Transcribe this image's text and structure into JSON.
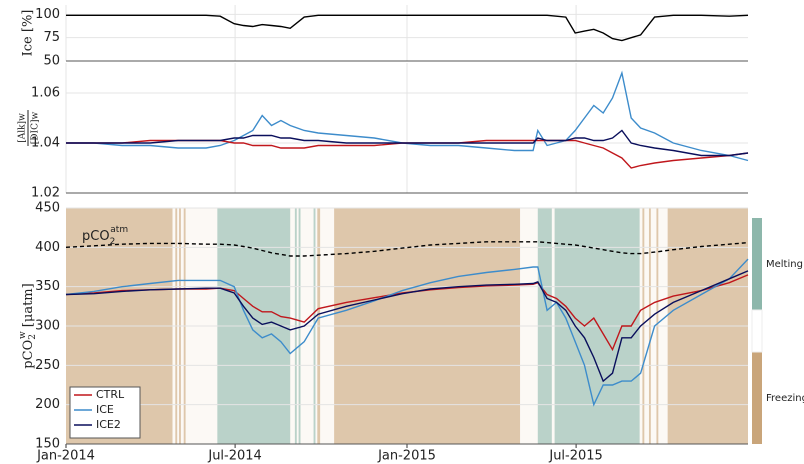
{
  "chart_data": [
    {
      "type": "line",
      "ylabel": "Ice [%]",
      "x": [
        0,
        30,
        60,
        90,
        120,
        150,
        165,
        180,
        190,
        200,
        210,
        220,
        230,
        240,
        255,
        270,
        300,
        330,
        360,
        390,
        420,
        450,
        480,
        500,
        505,
        515,
        525,
        535,
        545,
        555,
        565,
        575,
        585,
        595,
        605,
        615,
        630,
        650,
        680,
        710,
        730
      ],
      "xlim": [
        0,
        730
      ],
      "ylim": [
        50,
        110
      ],
      "yticks": [
        50,
        75,
        100
      ],
      "grid": true,
      "series": [
        {
          "color": "#000000",
          "values": [
            99,
            99,
            99,
            99,
            99,
            99,
            98,
            90,
            88,
            87,
            89,
            88,
            87,
            85,
            97,
            99,
            99,
            99,
            99,
            99,
            99,
            99,
            99,
            99,
            99,
            99,
            98,
            97,
            80,
            82,
            84,
            80,
            74,
            72,
            75,
            78,
            97,
            99,
            99,
            98,
            99
          ]
        }
      ]
    },
    {
      "type": "line",
      "ylabel": {
        "num": "[Alk]w",
        "den": "[DIC]w"
      },
      "x": [
        0,
        30,
        60,
        90,
        120,
        150,
        165,
        180,
        190,
        200,
        210,
        220,
        230,
        240,
        255,
        270,
        300,
        330,
        360,
        390,
        420,
        450,
        480,
        500,
        505,
        515,
        525,
        535,
        545,
        555,
        565,
        575,
        585,
        595,
        605,
        615,
        630,
        650,
        680,
        710,
        730
      ],
      "xlim": [
        0,
        730
      ],
      "ylim": [
        1.02,
        1.072
      ],
      "yticks": [
        1.02,
        1.04,
        1.06
      ],
      "grid": true,
      "series": [
        {
          "name": "ICE",
          "color": "#3d8ccb",
          "values": [
            1.04,
            1.04,
            1.039,
            1.039,
            1.038,
            1.038,
            1.039,
            1.041,
            1.043,
            1.045,
            1.051,
            1.047,
            1.049,
            1.047,
            1.045,
            1.044,
            1.043,
            1.042,
            1.04,
            1.039,
            1.039,
            1.038,
            1.037,
            1.037,
            1.045,
            1.039,
            1.04,
            1.041,
            1.045,
            1.05,
            1.055,
            1.052,
            1.058,
            1.068,
            1.05,
            1.046,
            1.044,
            1.04,
            1.037,
            1.035,
            1.033
          ]
        },
        {
          "name": "CTRL",
          "color": "#c0171c",
          "values": [
            1.04,
            1.04,
            1.04,
            1.041,
            1.041,
            1.041,
            1.041,
            1.04,
            1.04,
            1.039,
            1.039,
            1.039,
            1.038,
            1.038,
            1.038,
            1.039,
            1.039,
            1.039,
            1.04,
            1.04,
            1.04,
            1.041,
            1.041,
            1.041,
            1.041,
            1.041,
            1.041,
            1.041,
            1.041,
            1.04,
            1.039,
            1.038,
            1.036,
            1.034,
            1.03,
            1.031,
            1.032,
            1.033,
            1.034,
            1.035,
            1.036
          ]
        },
        {
          "name": "ICE2",
          "color": "#0a0f5c",
          "values": [
            1.04,
            1.04,
            1.04,
            1.04,
            1.041,
            1.041,
            1.041,
            1.042,
            1.042,
            1.043,
            1.043,
            1.043,
            1.042,
            1.042,
            1.041,
            1.041,
            1.04,
            1.04,
            1.04,
            1.04,
            1.04,
            1.04,
            1.04,
            1.04,
            1.042,
            1.041,
            1.041,
            1.041,
            1.042,
            1.042,
            1.041,
            1.041,
            1.042,
            1.045,
            1.04,
            1.039,
            1.038,
            1.037,
            1.035,
            1.035,
            1.036
          ]
        }
      ]
    },
    {
      "type": "line",
      "ylabel": {
        "base": "pCO",
        "sub": "2",
        "sup": "w",
        "unit": " [μatm]"
      },
      "annotation": {
        "base": "pCO",
        "sub": "2",
        "sup": "atm"
      },
      "x": [
        0,
        30,
        60,
        90,
        120,
        150,
        165,
        180,
        190,
        200,
        210,
        220,
        230,
        240,
        255,
        270,
        300,
        330,
        360,
        390,
        420,
        450,
        480,
        500,
        505,
        515,
        525,
        535,
        545,
        555,
        565,
        575,
        585,
        595,
        605,
        615,
        630,
        650,
        680,
        710,
        730
      ],
      "xlim": [
        0,
        730
      ],
      "ylim": [
        150,
        450
      ],
      "yticks": [
        150,
        200,
        250,
        300,
        350,
        400,
        450
      ],
      "grid": true,
      "xticks": [
        {
          "value": 0,
          "label": "Jan-2014"
        },
        {
          "value": 181,
          "label": "Jul-2014"
        },
        {
          "value": 365,
          "label": "Jan-2015"
        },
        {
          "value": 546,
          "label": "Jul-2015"
        }
      ],
      "legend": "lower left",
      "colorbar": [
        {
          "label": "Melting",
          "color": "#8db7ab",
          "intervals": [
            [
              162,
              240
            ],
            [
              245,
              247
            ],
            [
              249,
              251
            ],
            [
              265,
              267
            ],
            [
              505,
              520
            ],
            [
              523,
              614
            ]
          ]
        },
        {
          "label": "Freezing",
          "color": "#c9a57a",
          "intervals": [
            [
              0,
              114
            ],
            [
              117,
              119
            ],
            [
              121,
              123
            ],
            [
              126,
              128
            ],
            [
              269,
              272
            ],
            [
              287,
              486
            ],
            [
              617,
              619
            ],
            [
              624,
              626
            ],
            [
              632,
              634
            ],
            [
              644,
              730
            ]
          ]
        }
      ],
      "series": [
        {
          "color": "#000000",
          "style": "dashed",
          "values": [
            400,
            402,
            404,
            405,
            405,
            404,
            404,
            403,
            401,
            399,
            396,
            393,
            391,
            389,
            389,
            390,
            392,
            395,
            399,
            403,
            405,
            407,
            407,
            407,
            407,
            406,
            405,
            404,
            403,
            401,
            399,
            397,
            395,
            393,
            392,
            392,
            394,
            397,
            401,
            404,
            406
          ]
        },
        {
          "name": "CTRL",
          "color": "#c0171c",
          "values": [
            340,
            342,
            345,
            346,
            347,
            347,
            348,
            345,
            335,
            325,
            318,
            318,
            312,
            310,
            305,
            322,
            330,
            336,
            342,
            346,
            349,
            351,
            352,
            353,
            355,
            340,
            335,
            325,
            310,
            300,
            310,
            290,
            270,
            300,
            300,
            320,
            330,
            338,
            345,
            355,
            365
          ]
        },
        {
          "name": "ICE",
          "color": "#3d8ccb",
          "values": [
            340,
            344,
            350,
            354,
            358,
            358,
            358,
            350,
            320,
            295,
            285,
            290,
            280,
            265,
            280,
            310,
            320,
            332,
            345,
            355,
            363,
            368,
            372,
            375,
            375,
            320,
            330,
            310,
            280,
            250,
            200,
            225,
            225,
            230,
            230,
            240,
            300,
            320,
            340,
            360,
            385
          ]
        },
        {
          "name": "ICE2",
          "color": "#0a0f5c",
          "values": [
            340,
            341,
            344,
            346,
            347,
            348,
            348,
            342,
            325,
            310,
            302,
            305,
            300,
            295,
            300,
            315,
            325,
            333,
            341,
            347,
            350,
            352,
            353,
            354,
            356,
            335,
            330,
            320,
            300,
            285,
            260,
            230,
            240,
            285,
            285,
            300,
            315,
            330,
            345,
            360,
            370
          ]
        }
      ]
    }
  ]
}
